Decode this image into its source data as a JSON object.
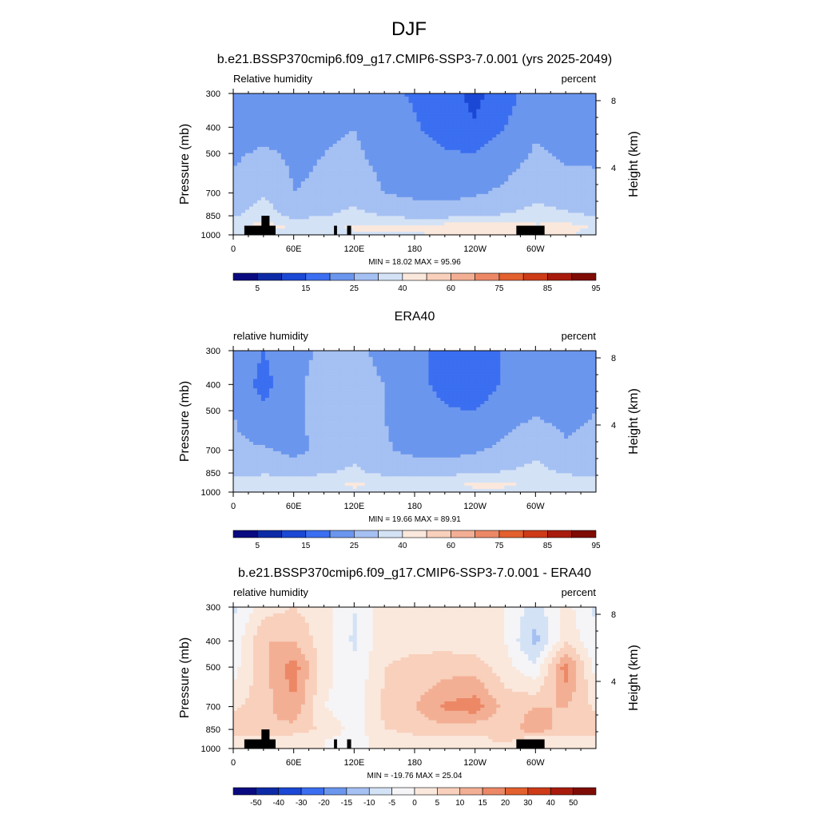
{
  "figure": {
    "title": "DJF",
    "panels": [
      {
        "title": "b.e21.BSSP370cmip6.f09_g17.CMIP6-SSP3-7.0.001 (yrs 2025-2049)",
        "left_label": "Relative humidity",
        "right_label": "percent",
        "stats": "MIN = 18.02 MAX = 95.96",
        "ylabel": "Pressure (mb)",
        "y2label": "Height (km)"
      },
      {
        "title": "ERA40",
        "left_label": "relative humidity",
        "right_label": "percent",
        "stats": "MIN = 19.66 MAX = 89.91",
        "ylabel": "Pressure (mb)",
        "y2label": "Height (km)"
      },
      {
        "title": "b.e21.BSSP370cmip6.f09_g17.CMIP6-SSP3-7.0.001 - ERA40",
        "left_label": "relative humidity",
        "right_label": "percent",
        "stats": "MIN = -19.76 MAX = 25.04",
        "ylabel": "Pressure (mb)",
        "y2label": "Height (km)"
      }
    ]
  },
  "chart_data": [
    {
      "type": "heatmap",
      "title": "b.e21.BSSP370cmip6.f09_g17.CMIP6-SSP3-7.0.001 (yrs 2025-2049)",
      "variable": "Relative humidity",
      "units": "percent",
      "x_ticks": [
        "0",
        "60E",
        "120E",
        "180",
        "120W",
        "60W"
      ],
      "y_ticks": [
        "300",
        "400",
        "500",
        "700",
        "850",
        "1000"
      ],
      "y2_ticks": [
        "8",
        "4"
      ],
      "ylabel": "Pressure (mb)",
      "y2label": "Height (km)",
      "xlim": [
        0,
        360
      ],
      "ylim": [
        1000,
        300
      ],
      "y_scale": "log",
      "colorbar": [
        "5",
        "15",
        "25",
        "40",
        "60",
        "75",
        "85",
        "95"
      ],
      "min": 18.02,
      "max": 95.96,
      "fields": {
        "lon": [
          0,
          30,
          60,
          90,
          120,
          150,
          180,
          210,
          240,
          270,
          300,
          330,
          360
        ],
        "pressure": [
          300,
          400,
          500,
          700,
          850,
          925,
          1000
        ],
        "values": [
          [
            48,
            50,
            52,
            52,
            54,
            44,
            38,
            30,
            22,
            30,
            55,
            48,
            48
          ],
          [
            52,
            56,
            56,
            58,
            60,
            52,
            42,
            32,
            26,
            40,
            58,
            52,
            52
          ],
          [
            58,
            62,
            58,
            60,
            62,
            56,
            48,
            42,
            40,
            52,
            62,
            58,
            58
          ],
          [
            64,
            74,
            60,
            62,
            68,
            60,
            56,
            54,
            58,
            64,
            72,
            66,
            64
          ],
          [
            74,
            82,
            72,
            74,
            80,
            74,
            72,
            72,
            74,
            76,
            80,
            78,
            74
          ],
          [
            84,
            88,
            84,
            84,
            86,
            86,
            86,
            88,
            90,
            92,
            86,
            88,
            84
          ],
          [
            82,
            84,
            82,
            82,
            84,
            84,
            84,
            86,
            88,
            88,
            84,
            86,
            82
          ]
        ]
      }
    },
    {
      "type": "heatmap",
      "title": "ERA40",
      "variable": "relative humidity",
      "units": "percent",
      "x_ticks": [
        "0",
        "60E",
        "120E",
        "180",
        "120W",
        "60W"
      ],
      "y_ticks": [
        "300",
        "400",
        "500",
        "700",
        "850",
        "1000"
      ],
      "y2_ticks": [
        "8",
        "4"
      ],
      "ylabel": "Pressure (mb)",
      "y2label": "Height (km)",
      "xlim": [
        0,
        360
      ],
      "ylim": [
        1000,
        300
      ],
      "y_scale": "log",
      "colorbar": [
        "5",
        "15",
        "25",
        "40",
        "60",
        "75",
        "85",
        "95"
      ],
      "min": 19.66,
      "max": 89.91,
      "fields": {
        "lon": [
          0,
          30,
          60,
          90,
          120,
          150,
          180,
          210,
          240,
          270,
          300,
          330,
          360
        ],
        "pressure": [
          300,
          400,
          500,
          700,
          850,
          925,
          1000
        ],
        "values": [
          [
            56,
            40,
            56,
            62,
            64,
            56,
            44,
            34,
            26,
            42,
            54,
            54,
            56
          ],
          [
            58,
            32,
            58,
            64,
            66,
            60,
            46,
            34,
            26,
            44,
            56,
            50,
            58
          ],
          [
            60,
            44,
            58,
            64,
            66,
            60,
            50,
            42,
            40,
            54,
            58,
            56,
            60
          ],
          [
            64,
            62,
            56,
            64,
            70,
            62,
            56,
            54,
            58,
            64,
            72,
            62,
            64
          ],
          [
            70,
            74,
            70,
            74,
            78,
            72,
            72,
            72,
            74,
            76,
            80,
            74,
            70
          ],
          [
            84,
            82,
            84,
            84,
            86,
            84,
            84,
            84,
            86,
            86,
            84,
            84,
            84
          ],
          [
            82,
            82,
            82,
            82,
            84,
            82,
            82,
            82,
            84,
            84,
            82,
            82,
            82
          ]
        ]
      }
    },
    {
      "type": "heatmap",
      "title": "b.e21.BSSP370cmip6.f09_g17.CMIP6-SSP3-7.0.001 - ERA40",
      "variable": "relative humidity",
      "units": "percent",
      "x_ticks": [
        "0",
        "60E",
        "120E",
        "180",
        "120W",
        "60W"
      ],
      "y_ticks": [
        "300",
        "400",
        "500",
        "700",
        "850",
        "1000"
      ],
      "y2_ticks": [
        "8",
        "4"
      ],
      "ylabel": "Pressure (mb)",
      "y2label": "Height (km)",
      "xlim": [
        0,
        360
      ],
      "ylim": [
        1000,
        300
      ],
      "y_scale": "log",
      "colorbar": [
        "-50",
        "-40",
        "-30",
        "-20",
        "-15",
        "-10",
        "-5",
        "0",
        "5",
        "10",
        "15",
        "20",
        "30",
        "40",
        "50"
      ],
      "min": -19.76,
      "max": 25.04,
      "fields": {
        "lon": [
          0,
          30,
          60,
          90,
          120,
          150,
          180,
          210,
          240,
          270,
          300,
          330,
          360
        ],
        "pressure": [
          300,
          400,
          500,
          700,
          850,
          925,
          1000
        ],
        "values": [
          [
            -6,
            3,
            5,
            2,
            -5,
            3,
            2,
            2,
            2,
            0,
            -8,
            2,
            -6
          ],
          [
            -4,
            10,
            10,
            2,
            -6,
            4,
            4,
            3,
            2,
            0,
            -12,
            4,
            -4
          ],
          [
            -2,
            8,
            18,
            2,
            -4,
            5,
            6,
            8,
            8,
            2,
            -4,
            18,
            -2
          ],
          [
            4,
            8,
            14,
            0,
            -3,
            6,
            10,
            16,
            18,
            8,
            10,
            10,
            4
          ],
          [
            8,
            10,
            8,
            4,
            -2,
            5,
            6,
            8,
            6,
            6,
            14,
            6,
            8
          ],
          [
            2,
            4,
            2,
            0,
            -2,
            2,
            4,
            4,
            4,
            6,
            2,
            4,
            2
          ],
          [
            0,
            2,
            0,
            0,
            -2,
            2,
            2,
            4,
            4,
            4,
            2,
            2,
            0
          ]
        ]
      }
    }
  ],
  "colors": {
    "abs_scale": [
      "#0a0a80",
      "#0d2aa6",
      "#1b48d4",
      "#3b6ef0",
      "#6b96ee",
      "#a5c0f2",
      "#d4e2f6",
      "#fbe8dc",
      "#f8d0bc",
      "#f3af94",
      "#ec8866",
      "#e3602f",
      "#cd3b17",
      "#a81b0c",
      "#7f0b05"
    ],
    "diff_scale": [
      "#0a0a80",
      "#0d2aa6",
      "#1b48d4",
      "#3b6ef0",
      "#6b96ee",
      "#a5c0f2",
      "#d4e2f6",
      "#f5f5f8",
      "#fbe8dc",
      "#f8d0bc",
      "#f3af94",
      "#ec8866",
      "#e3602f",
      "#cd3b17",
      "#a81b0c",
      "#7f0b05"
    ],
    "terrain": "#000000"
  }
}
